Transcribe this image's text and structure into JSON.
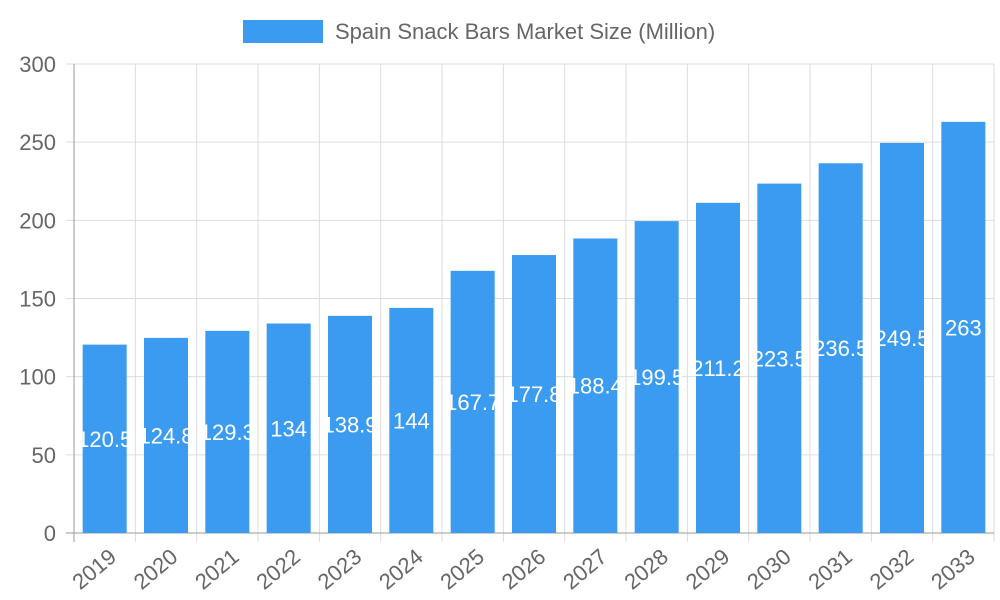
{
  "chart_data": {
    "type": "bar",
    "categories": [
      "2019",
      "2020",
      "2021",
      "2022",
      "2023",
      "2024",
      "2025",
      "2026",
      "2027",
      "2028",
      "2029",
      "2030",
      "2031",
      "2032",
      "2033"
    ],
    "series": [
      {
        "name": "Spain Snack Bars Market Size (Million)",
        "values": [
          120.5,
          124.8,
          129.3,
          134,
          138.9,
          144,
          167.7,
          177.8,
          188.4,
          199.5,
          211.2,
          223.5,
          236.5,
          249.5,
          263
        ]
      }
    ],
    "data_labels": [
      "120.5",
      "124.8",
      "129.3",
      "134",
      "138.9",
      "144",
      "167.7",
      "177.8",
      "188.4",
      "199.5",
      "211.2",
      "223.5",
      "236.5",
      "249.5",
      "263"
    ],
    "ylim": [
      0,
      300
    ],
    "yticks": [
      "0",
      "50",
      "100",
      "150",
      "200",
      "250",
      "300"
    ],
    "grid": true,
    "legend": "top",
    "bar_color": "#3a9bf0"
  }
}
